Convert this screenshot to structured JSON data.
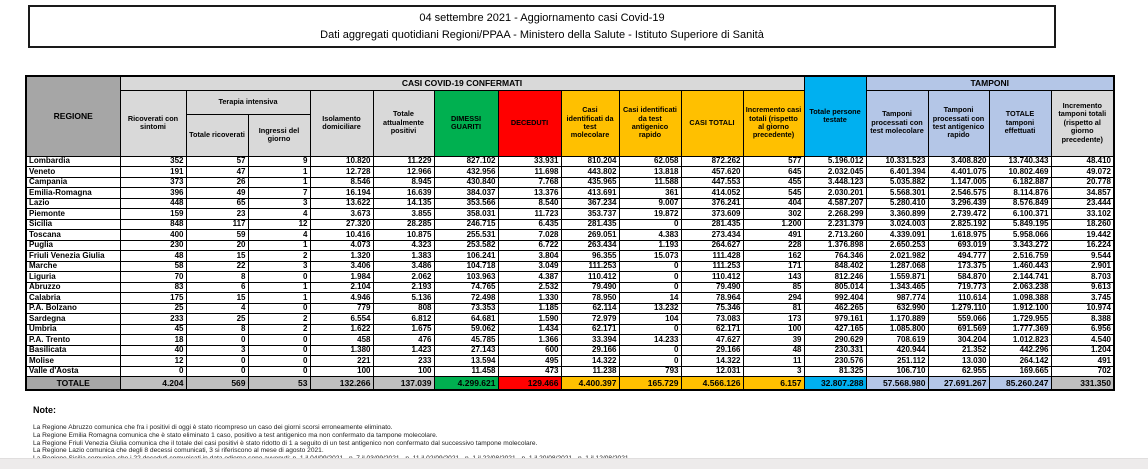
{
  "title": {
    "line1": "04 settembre 2021 - Aggiornamento casi Covid-19",
    "line2": "Dati aggregati quotidiani Regioni/PPAA - Ministero della Salute - Istituto Superiore di Sanità"
  },
  "colors": {
    "green": "#00b050",
    "red": "#ff0000",
    "yellow": "#ffc000",
    "cyan": "#00b0f0",
    "light_blue": "#b4c6e7",
    "header_gray": "#a6a6a6",
    "light_gray": "#d9d9d9",
    "total_gray": "#bfbfbf"
  },
  "table": {
    "header": {
      "regione": "REGIONE",
      "confermati_group": "CASI COVID-19 CONFERMATI",
      "tamponi_group": "TAMPONI",
      "ricoverati": "Ricoverati con sintomi",
      "terapia_group": "Terapia intensiva",
      "terapia_totale": "Totale ricoverati",
      "terapia_ingressi": "Ingressi del giorno",
      "isolamento": "Isolamento domiciliare",
      "attualmente_positivi": "Totale attualmente positivi",
      "dimessi": "DIMESSI GUARITI",
      "deceduti": "DECEDUTI",
      "casi_molecolare": "Casi identificati da test molecolare",
      "casi_antigenico": "Casi identificati da test antigenico rapido",
      "casi_totali": "CASI TOTALI",
      "incremento_casi": "Incremento casi totali (rispetto al giorno precedente)",
      "persone_testate": "Totale persone testate",
      "tamponi_molecolare": "Tamponi processati con test molecolare",
      "tamponi_antigenico": "Tamponi processati con test antigenico rapido",
      "totale_tamponi": "TOTALE tamponi effettuati",
      "incremento_tamponi": "Incremento tamponi totali (rispetto al giorno precedente)"
    },
    "rows": [
      {
        "region": "Lombardia",
        "values": [
          "352",
          "57",
          "9",
          "10.820",
          "11.229",
          "827.102",
          "33.931",
          "810.204",
          "62.058",
          "872.262",
          "577",
          "5.196.012",
          "10.331.523",
          "3.408.820",
          "13.740.343",
          "48.410"
        ]
      },
      {
        "region": "Veneto",
        "values": [
          "191",
          "47",
          "1",
          "12.728",
          "12.966",
          "432.956",
          "11.698",
          "443.802",
          "13.818",
          "457.620",
          "645",
          "2.032.045",
          "6.401.394",
          "4.401.075",
          "10.802.469",
          "49.072"
        ]
      },
      {
        "region": "Campania",
        "values": [
          "373",
          "26",
          "1",
          "8.546",
          "8.945",
          "430.840",
          "7.768",
          "435.965",
          "11.588",
          "447.553",
          "455",
          "3.448.123",
          "5.035.882",
          "1.147.005",
          "6.182.887",
          "20.778"
        ]
      },
      {
        "region": "Emilia-Romagna",
        "values": [
          "396",
          "49",
          "7",
          "16.194",
          "16.639",
          "384.037",
          "13.376",
          "413.691",
          "361",
          "414.052",
          "545",
          "2.030.201",
          "5.568.301",
          "2.546.575",
          "8.114.876",
          "34.857"
        ]
      },
      {
        "region": "Lazio",
        "values": [
          "448",
          "65",
          "3",
          "13.622",
          "14.135",
          "353.566",
          "8.540",
          "367.234",
          "9.007",
          "376.241",
          "404",
          "4.587.207",
          "5.280.410",
          "3.296.439",
          "8.576.849",
          "23.444"
        ]
      },
      {
        "region": "Piemonte",
        "values": [
          "159",
          "23",
          "4",
          "3.673",
          "3.855",
          "358.031",
          "11.723",
          "353.737",
          "19.872",
          "373.609",
          "302",
          "2.268.299",
          "3.360.899",
          "2.739.472",
          "6.100.371",
          "33.102"
        ]
      },
      {
        "region": "Sicilia",
        "values": [
          "848",
          "117",
          "12",
          "27.320",
          "28.285",
          "246.715",
          "6.435",
          "281.435",
          "0",
          "281.435",
          "1.200",
          "2.231.379",
          "3.024.003",
          "2.825.192",
          "5.849.195",
          "18.260"
        ]
      },
      {
        "region": "Toscana",
        "values": [
          "400",
          "59",
          "4",
          "10.416",
          "10.875",
          "255.531",
          "7.028",
          "269.051",
          "4.383",
          "273.434",
          "491",
          "2.713.260",
          "4.339.091",
          "1.618.975",
          "5.958.066",
          "19.442"
        ]
      },
      {
        "region": "Puglia",
        "values": [
          "230",
          "20",
          "1",
          "4.073",
          "4.323",
          "253.582",
          "6.722",
          "263.434",
          "1.193",
          "264.627",
          "228",
          "1.376.898",
          "2.650.253",
          "693.019",
          "3.343.272",
          "16.224"
        ]
      },
      {
        "region": "Friuli Venezia Giulia",
        "values": [
          "48",
          "15",
          "2",
          "1.320",
          "1.383",
          "106.241",
          "3.804",
          "96.355",
          "15.073",
          "111.428",
          "162",
          "764.346",
          "2.021.982",
          "494.777",
          "2.516.759",
          "9.544"
        ]
      },
      {
        "region": "Marche",
        "values": [
          "58",
          "22",
          "3",
          "3.406",
          "3.486",
          "104.718",
          "3.049",
          "111.253",
          "0",
          "111.253",
          "171",
          "848.402",
          "1.287.068",
          "173.375",
          "1.460.443",
          "2.901"
        ]
      },
      {
        "region": "Liguria",
        "values": [
          "70",
          "8",
          "0",
          "1.984",
          "2.062",
          "103.963",
          "4.387",
          "110.412",
          "0",
          "110.412",
          "143",
          "812.246",
          "1.559.871",
          "584.870",
          "2.144.741",
          "8.703"
        ]
      },
      {
        "region": "Abruzzo",
        "values": [
          "83",
          "6",
          "1",
          "2.104",
          "2.193",
          "74.765",
          "2.532",
          "79.490",
          "0",
          "79.490",
          "85",
          "805.014",
          "1.343.465",
          "719.773",
          "2.063.238",
          "9.613"
        ]
      },
      {
        "region": "Calabria",
        "values": [
          "175",
          "15",
          "1",
          "4.946",
          "5.136",
          "72.498",
          "1.330",
          "78.950",
          "14",
          "78.964",
          "294",
          "992.404",
          "987.774",
          "110.614",
          "1.098.388",
          "3.745"
        ]
      },
      {
        "region": "P.A. Bolzano",
        "values": [
          "25",
          "4",
          "0",
          "779",
          "808",
          "73.353",
          "1.185",
          "62.114",
          "13.232",
          "75.346",
          "81",
          "462.265",
          "632.990",
          "1.279.110",
          "1.912.100",
          "10.974"
        ]
      },
      {
        "region": "Sardegna",
        "values": [
          "233",
          "25",
          "2",
          "6.554",
          "6.812",
          "64.681",
          "1.590",
          "72.979",
          "104",
          "73.083",
          "173",
          "979.161",
          "1.170.889",
          "559.066",
          "1.729.955",
          "8.388"
        ]
      },
      {
        "region": "Umbria",
        "values": [
          "45",
          "8",
          "2",
          "1.622",
          "1.675",
          "59.062",
          "1.434",
          "62.171",
          "0",
          "62.171",
          "100",
          "427.165",
          "1.085.800",
          "691.569",
          "1.777.369",
          "6.956"
        ]
      },
      {
        "region": "P.A. Trento",
        "values": [
          "18",
          "0",
          "0",
          "458",
          "476",
          "45.785",
          "1.366",
          "33.394",
          "14.233",
          "47.627",
          "39",
          "290.629",
          "708.619",
          "304.204",
          "1.012.823",
          "4.540"
        ]
      },
      {
        "region": "Basilicata",
        "values": [
          "40",
          "3",
          "0",
          "1.380",
          "1.423",
          "27.143",
          "600",
          "29.166",
          "0",
          "29.166",
          "48",
          "230.331",
          "420.944",
          "21.352",
          "442.296",
          "1.204"
        ]
      },
      {
        "region": "Molise",
        "values": [
          "12",
          "0",
          "0",
          "221",
          "233",
          "13.594",
          "495",
          "14.322",
          "0",
          "14.322",
          "11",
          "230.576",
          "251.112",
          "13.030",
          "264.142",
          "491"
        ]
      },
      {
        "region": "Valle d'Aosta",
        "values": [
          "0",
          "0",
          "0",
          "100",
          "100",
          "11.458",
          "473",
          "11.238",
          "793",
          "12.031",
          "3",
          "81.325",
          "106.710",
          "62.955",
          "169.665",
          "702"
        ]
      }
    ],
    "total": {
      "region": "TOTALE",
      "values": [
        "4.204",
        "569",
        "53",
        "132.266",
        "137.039",
        "4.299.621",
        "129.466",
        "4.400.397",
        "165.729",
        "4.566.126",
        "6.157",
        "32.807.288",
        "57.568.980",
        "27.691.267",
        "85.260.247",
        "331.350"
      ]
    }
  },
  "notes": {
    "heading": "Note:",
    "items": [
      "La Regione Abruzzo comunica che fra i positivi di oggi è stato ricompreso un caso dei giorni scorsi erroneamente eliminato.",
      "La Regione Emilia Romagna comunica che è stato eliminato 1 caso, positivo a test antigenico ma non confermato da tampone molecolare.",
      "La Regione Friuli Venezia Giulia comunica che il totale dei casi positivi è stato ridotto di  1 a seguito di un test antigenico non confermato dal successivo tampone molecolare.",
      "La Regione Lazio comunica che degli 8 decessi comunicati, 3 si riferiscono al mese di agosto 2021.",
      "La Regione Sicilia comunica che i 22 deceduti comunicati in data odierna sono avvenuti: n. 1 il 04/09/2021 - n. 7 il 03/09/2021 - n. 11 il 02/09/2021 - n. 1 il 22/08/2021 - n. 1 il 20/08/2021 - n. 1 il 12/08/2021."
    ]
  }
}
